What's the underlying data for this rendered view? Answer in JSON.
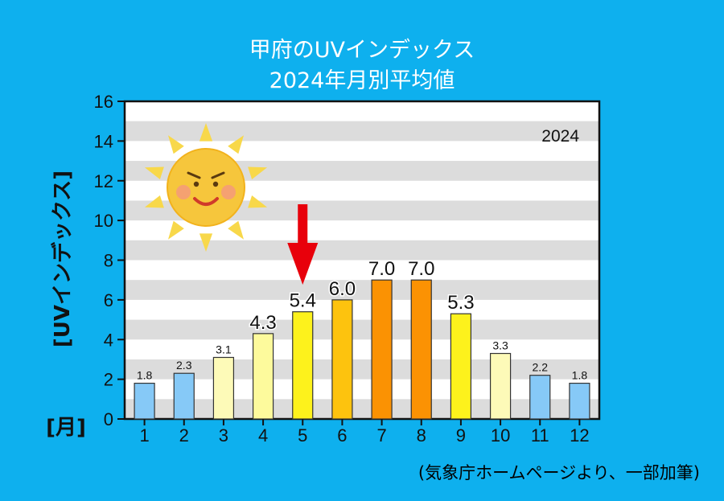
{
  "title_line1": "甲府のUVインデックス",
  "title_line2": "2024年月別平均値",
  "source_note": "(気象庁ホームページより、一部加筆)",
  "chart_data": {
    "type": "bar",
    "year_label": "2024",
    "ylabel": "[UVインデックス]",
    "xlabel": "[月]",
    "categories": [
      "1",
      "2",
      "3",
      "4",
      "5",
      "6",
      "7",
      "8",
      "9",
      "10",
      "11",
      "12"
    ],
    "values": [
      1.8,
      2.3,
      3.1,
      4.3,
      5.4,
      6.0,
      7.0,
      7.0,
      5.3,
      3.3,
      2.2,
      1.8
    ],
    "value_labels": [
      "1.8",
      "2.3",
      "3.1",
      "4.3",
      "5.4",
      "6.0",
      "7.0",
      "7.0",
      "5.3",
      "3.3",
      "2.2",
      "1.8"
    ],
    "ylim": [
      0,
      16
    ],
    "yticks": [
      "0",
      "2",
      "4",
      "6",
      "8",
      "10",
      "12",
      "14",
      "16"
    ],
    "bar_colors": [
      "#86c9f7",
      "#86c9f7",
      "#fdfab8",
      "#fdfa9c",
      "#fdf21c",
      "#fdc30e",
      "#fb9203",
      "#fb9203",
      "#fdf21c",
      "#fdfab8",
      "#86c9f7",
      "#86c9f7"
    ],
    "highlight_month": "5",
    "highlight_color": "#e8000b"
  }
}
